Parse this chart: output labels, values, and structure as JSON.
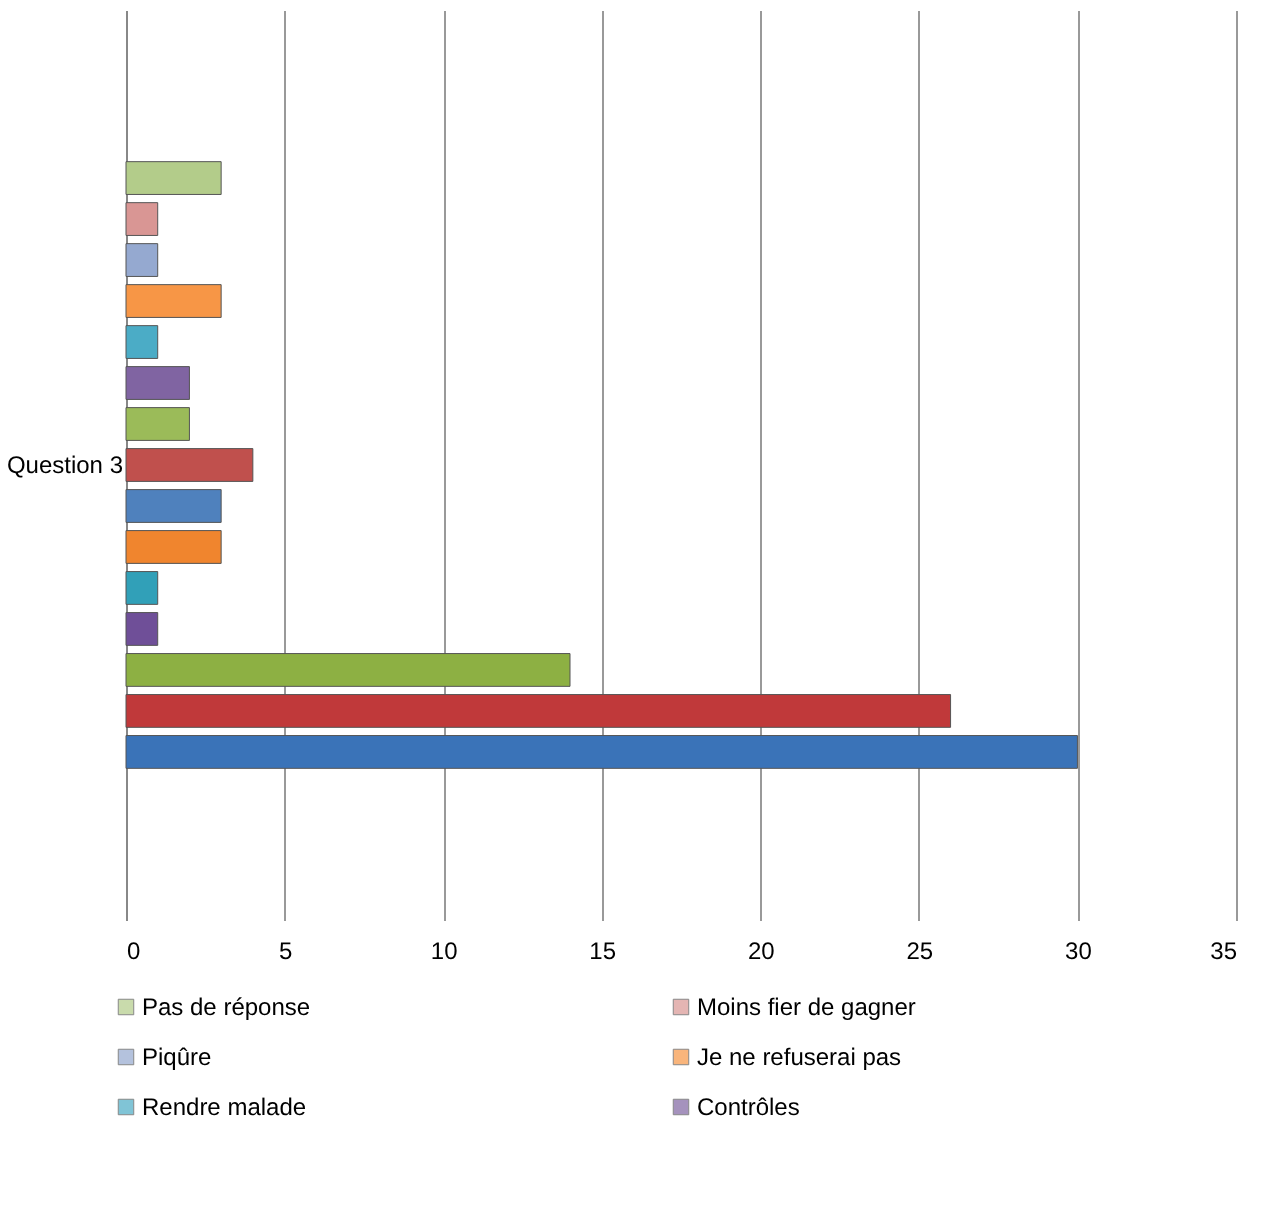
{
  "chart_data": {
    "type": "bar",
    "orientation": "horizontal",
    "categories": [
      "Question 3"
    ],
    "series": [
      {
        "name": "Pas de réponse",
        "color": "#b3cc8a",
        "values": [
          3
        ]
      },
      {
        "name": "Moins fier de gagner",
        "color": "#d99694",
        "values": [
          1
        ]
      },
      {
        "name": "Piqûre",
        "color": "#95a9d0",
        "values": [
          1
        ]
      },
      {
        "name": "Je ne refuserai pas",
        "color": "#f79646",
        "values": [
          3
        ]
      },
      {
        "name": "Rendre malade",
        "color": "#4bacc6",
        "values": [
          1
        ]
      },
      {
        "name": "Contrôles",
        "color": "#8064a2",
        "values": [
          2
        ]
      },
      {
        "color": "#9bbb59",
        "values": [
          2
        ]
      },
      {
        "color": "#c0504d",
        "values": [
          4
        ]
      },
      {
        "color": "#4f81bd",
        "values": [
          3
        ]
      },
      {
        "color": "#f0852e",
        "values": [
          3
        ]
      },
      {
        "color": "#31a0b8",
        "values": [
          1
        ]
      },
      {
        "color": "#6f4f98",
        "values": [
          1
        ]
      },
      {
        "color": "#8db043",
        "values": [
          14
        ]
      },
      {
        "color": "#c0393a",
        "values": [
          26
        ]
      },
      {
        "color": "#3a73b8",
        "values": [
          30
        ]
      }
    ],
    "xlim": [
      0,
      35
    ],
    "xticks": [
      0,
      5,
      10,
      15,
      20,
      25,
      30,
      35
    ],
    "grid": "x",
    "legend": "bottom"
  }
}
